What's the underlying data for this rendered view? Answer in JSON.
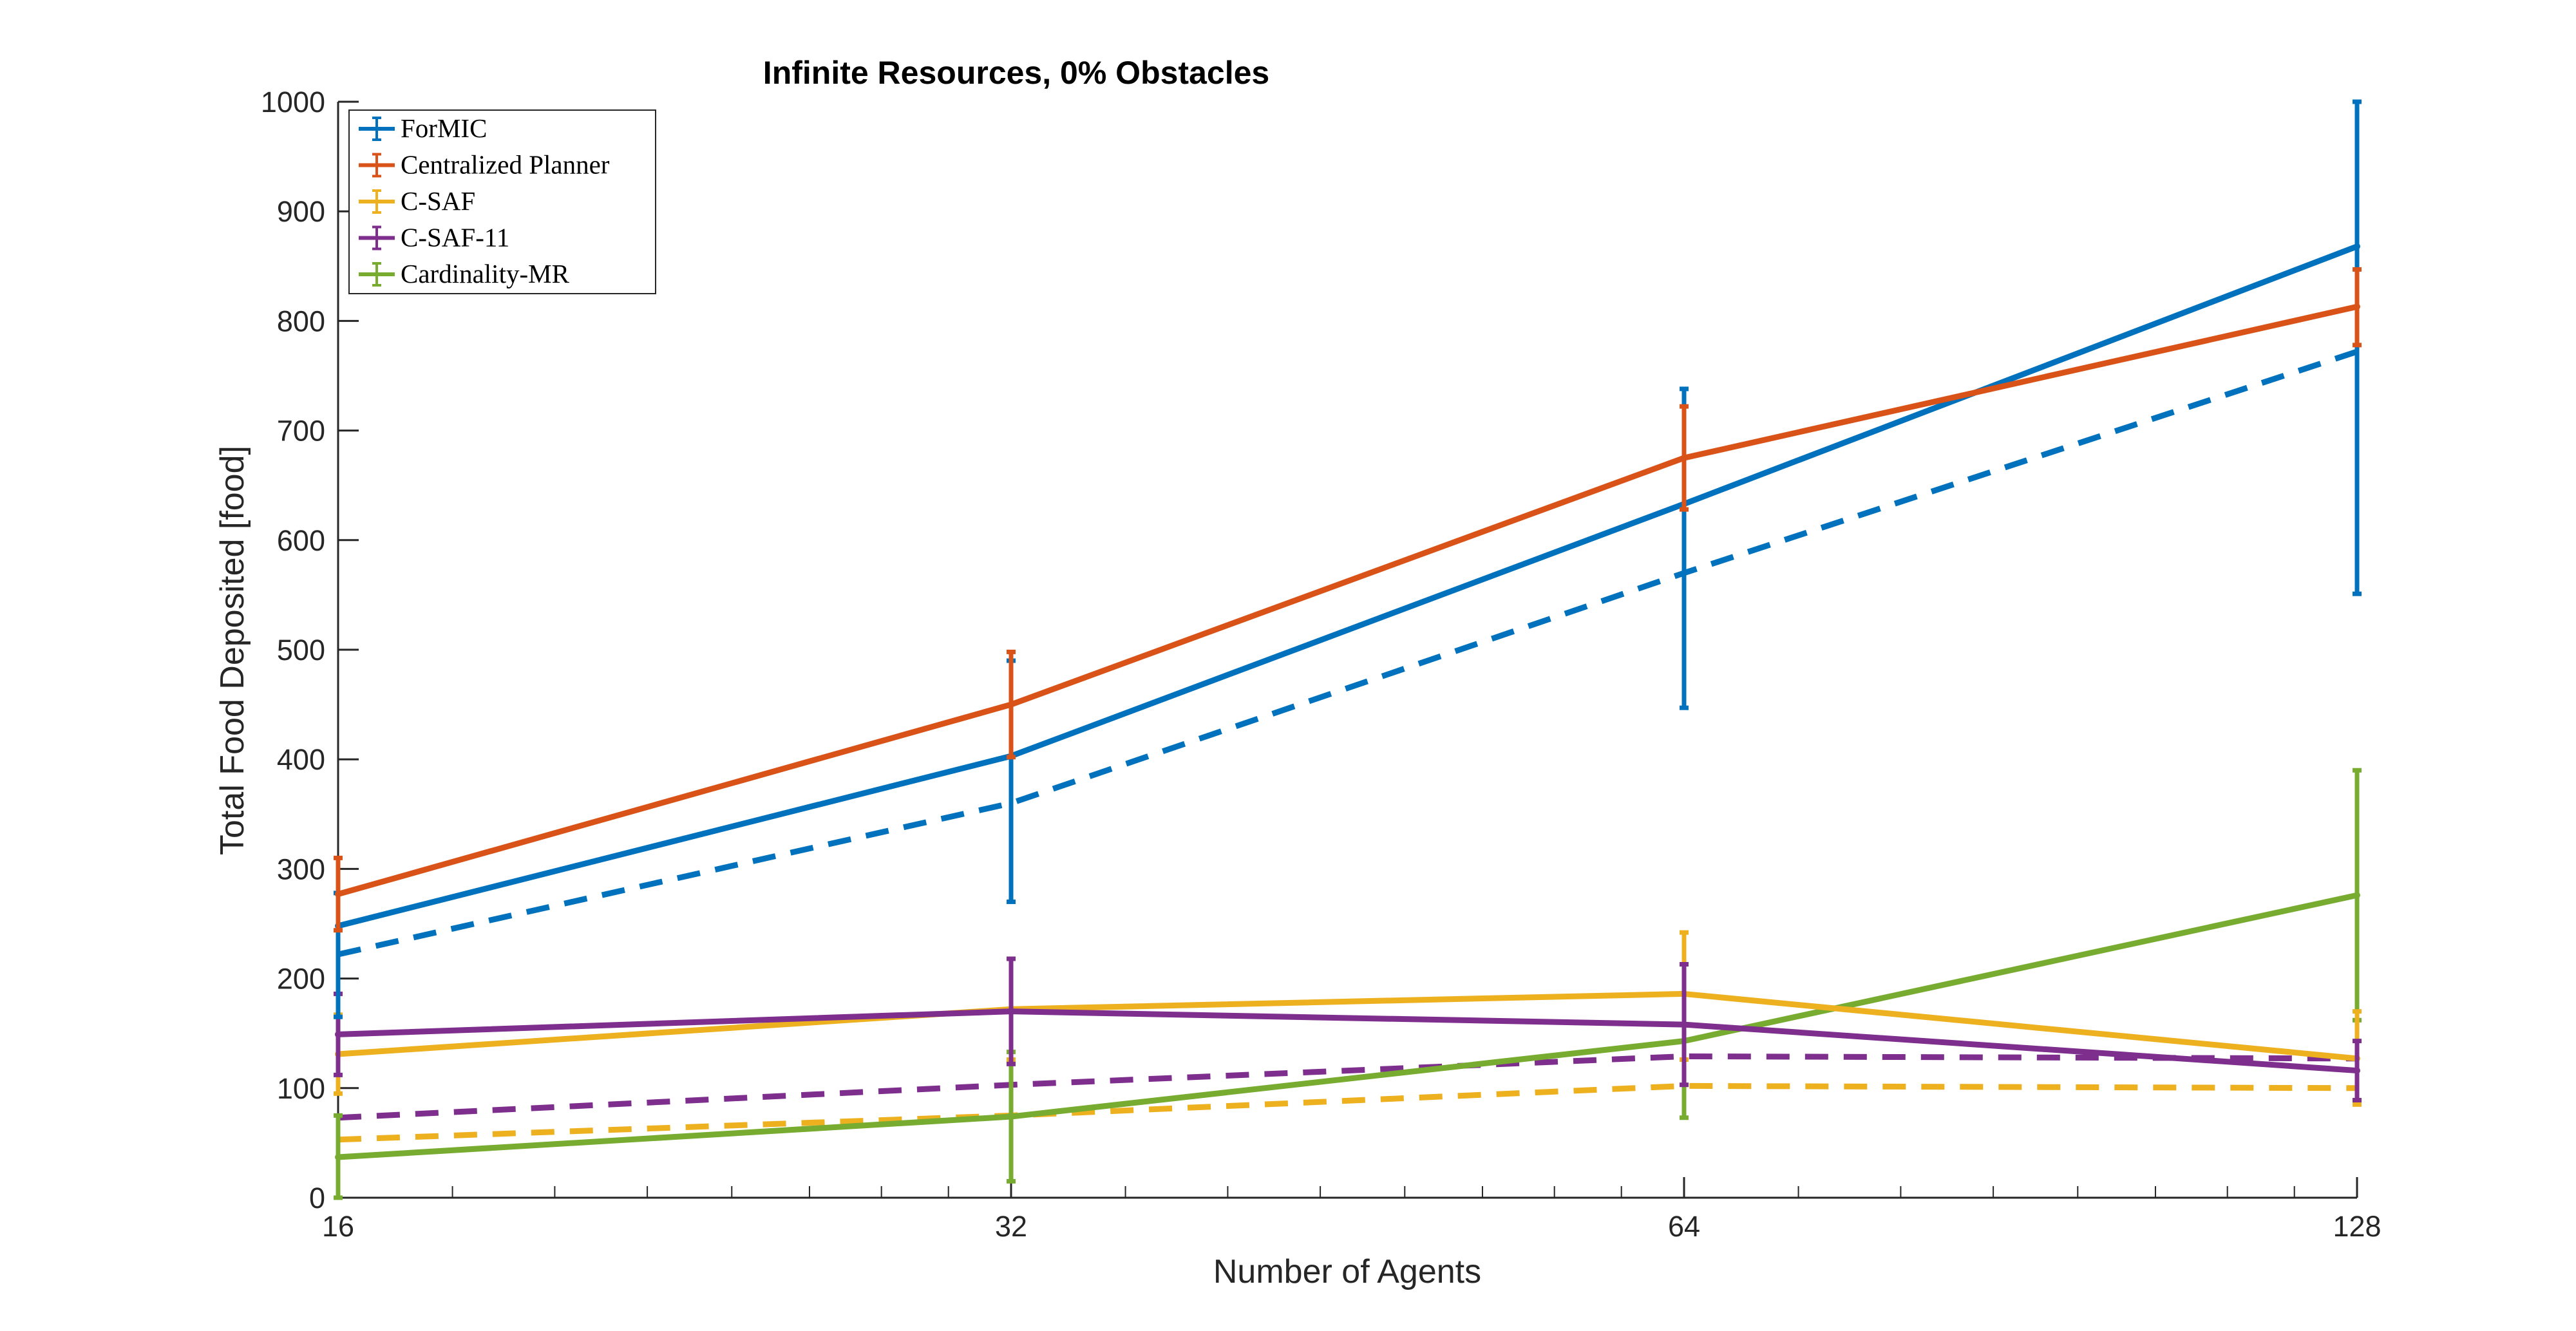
{
  "chart_data": {
    "type": "line",
    "title": "Infinite Resources, 0% Obstacles",
    "xlabel": "Number of Agents",
    "ylabel": "Total Food Deposited [food]",
    "x_scale": "log2",
    "x": [
      16,
      32,
      64,
      128
    ],
    "x_ticks": [
      "16",
      "32",
      "64",
      "128"
    ],
    "xlim": [
      16,
      128
    ],
    "ylim": [
      0,
      1000
    ],
    "y_ticks": [
      "0",
      "100",
      "200",
      "300",
      "400",
      "500",
      "600",
      "700",
      "800",
      "900",
      "1000"
    ],
    "grid": false,
    "legend_position": "top-left",
    "series": [
      {
        "name": "ForMIC",
        "color": "#0072BD",
        "style": "solid",
        "values": [
          248,
          403,
          633,
          868
        ],
        "err_low": [
          165,
          270,
          447,
          551
        ],
        "err_high": [
          278,
          490,
          738,
          1000
        ]
      },
      {
        "name": "Centralized Planner",
        "color": "#D95319",
        "style": "solid",
        "values": [
          277,
          450,
          675,
          813
        ],
        "err_low": [
          244,
          402,
          628,
          778
        ],
        "err_high": [
          310,
          498,
          722,
          847
        ]
      },
      {
        "name": "C-SAF",
        "color": "#EDB120",
        "style": "solid",
        "values": [
          131,
          172,
          186,
          127
        ],
        "err_low": [
          95,
          126,
          126,
          85
        ],
        "err_high": [
          167,
          218,
          242,
          170
        ]
      },
      {
        "name": "C-SAF-11",
        "color": "#7E2F8E",
        "style": "solid",
        "values": [
          149,
          170,
          158,
          116
        ],
        "err_low": [
          112,
          122,
          103,
          89
        ],
        "err_high": [
          186,
          218,
          213,
          143
        ]
      },
      {
        "name": "Cardinality-MR",
        "color": "#77AC30",
        "style": "solid",
        "values": [
          37,
          74,
          143,
          276
        ],
        "err_low": [
          0,
          15,
          73,
          162
        ],
        "err_high": [
          75,
          133,
          213,
          390
        ]
      },
      {
        "color": "#0072BD",
        "style": "dashed",
        "values": [
          222,
          360,
          570,
          772
        ]
      },
      {
        "color": "#7E2F8E",
        "style": "dashed",
        "values": [
          73,
          103,
          129,
          127
        ]
      },
      {
        "color": "#EDB120",
        "style": "dashed",
        "values": [
          53,
          75,
          102,
          100
        ]
      }
    ]
  }
}
